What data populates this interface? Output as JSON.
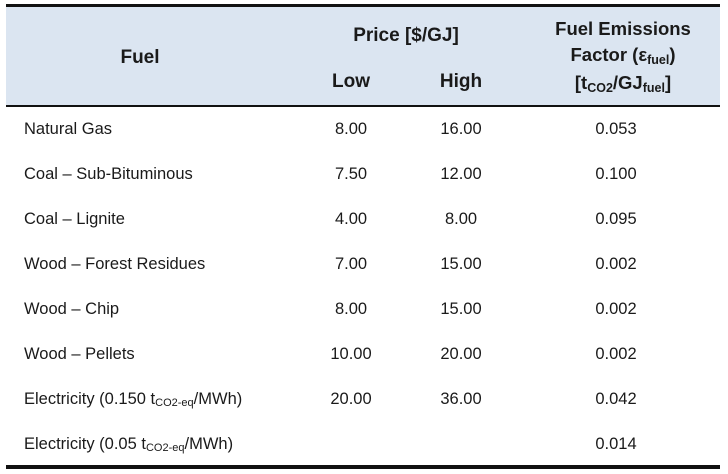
{
  "header": {
    "fuel": "Fuel",
    "price": "Price [$/GJ]",
    "low": "Low",
    "high": "High",
    "emissions_line1": "Fuel Emissions",
    "emissions_line2_pre": "Factor (ε",
    "emissions_line2_sub": "fuel",
    "emissions_line2_post": ")",
    "emissions_line3_pre": "[t",
    "emissions_line3_sub1": "CO2",
    "emissions_line3_mid": "/GJ",
    "emissions_line3_sub2": "fuel",
    "emissions_line3_post": "]"
  },
  "rows": [
    {
      "fuel": "Natural Gas",
      "low": "8.00",
      "high": "16.00",
      "ef": "0.053"
    },
    {
      "fuel": "Coal – Sub-Bituminous",
      "low": "7.50",
      "high": "12.00",
      "ef": "0.100"
    },
    {
      "fuel": "Coal – Lignite",
      "low": "4.00",
      "high": "8.00",
      "ef": "0.095"
    },
    {
      "fuel": "Wood – Forest Residues",
      "low": "7.00",
      "high": "15.00",
      "ef": "0.002"
    },
    {
      "fuel": "Wood – Chip",
      "low": "8.00",
      "high": "15.00",
      "ef": "0.002"
    },
    {
      "fuel": "Wood – Pellets",
      "low": "10.00",
      "high": "20.00",
      "ef": "0.002"
    },
    {
      "fuel_pre": "Electricity (0.150 t",
      "fuel_sub": "CO2-eq",
      "fuel_post": "/MWh)",
      "low": "20.00",
      "high": "36.00",
      "ef": "0.042"
    },
    {
      "fuel_pre": "Electricity (0.05 t",
      "fuel_sub": "CO2-eq",
      "fuel_post": "/MWh)",
      "low": "",
      "high": "",
      "ef": "0.014"
    }
  ]
}
